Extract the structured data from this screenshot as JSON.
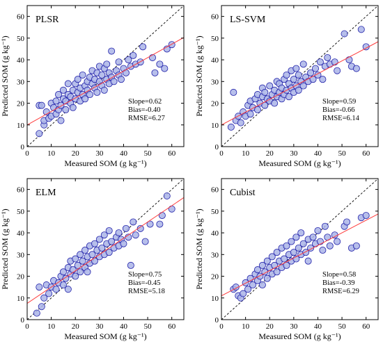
{
  "colors": {
    "point_fill": "#aab4e8",
    "point_stroke": "#2222aa",
    "fit_line": "#ff3b3b",
    "one_to_one_line": "#000000",
    "axis": "#000000"
  },
  "chart_data": [
    {
      "type": "scatter",
      "title": "PLSR",
      "xlabel": "Measured SOM (g kg⁻¹)",
      "ylabel": "Predicted SOM (g kg⁻¹)",
      "xlim": [
        0,
        65
      ],
      "ylim": [
        0,
        65
      ],
      "xticks": [
        "0",
        "10",
        "20",
        "30",
        "40",
        "50",
        "60"
      ],
      "yticks": [
        "0",
        "10",
        "20",
        "30",
        "40",
        "50",
        "60"
      ],
      "fit": {
        "slope": 0.62,
        "intercept": 10.0
      },
      "one_to_one": true,
      "stats": [
        "Slope=0.62",
        "Bias=-0.40",
        "RMSE=6.27"
      ],
      "points": [
        [
          5,
          6
        ],
        [
          5,
          19
        ],
        [
          6,
          19
        ],
        [
          7,
          10
        ],
        [
          7,
          12
        ],
        [
          8,
          16
        ],
        [
          9,
          13
        ],
        [
          10,
          14
        ],
        [
          10,
          20
        ],
        [
          11,
          18
        ],
        [
          12,
          15
        ],
        [
          12,
          21
        ],
        [
          13,
          17
        ],
        [
          13,
          24
        ],
        [
          14,
          19
        ],
        [
          14,
          12
        ],
        [
          15,
          22
        ],
        [
          15,
          26
        ],
        [
          16,
          17
        ],
        [
          16,
          21
        ],
        [
          17,
          24
        ],
        [
          17,
          29
        ],
        [
          18,
          20
        ],
        [
          18,
          23
        ],
        [
          19,
          26
        ],
        [
          19,
          18
        ],
        [
          20,
          22
        ],
        [
          20,
          29
        ],
        [
          21,
          25
        ],
        [
          21,
          31
        ],
        [
          22,
          21
        ],
        [
          22,
          27
        ],
        [
          23,
          24
        ],
        [
          23,
          33
        ],
        [
          24,
          28
        ],
        [
          24,
          22
        ],
        [
          25,
          30
        ],
        [
          25,
          26
        ],
        [
          26,
          24
        ],
        [
          26,
          32
        ],
        [
          27,
          29
        ],
        [
          27,
          35
        ],
        [
          28,
          27
        ],
        [
          28,
          31
        ],
        [
          29,
          25
        ],
        [
          29,
          34
        ],
        [
          30,
          30
        ],
        [
          30,
          37
        ],
        [
          31,
          28
        ],
        [
          31,
          33
        ],
        [
          32,
          26
        ],
        [
          32,
          36
        ],
        [
          33,
          31
        ],
        [
          33,
          38
        ],
        [
          34,
          29
        ],
        [
          34,
          34
        ],
        [
          35,
          32
        ],
        [
          35,
          44
        ],
        [
          36,
          30
        ],
        [
          37,
          35
        ],
        [
          38,
          33
        ],
        [
          38,
          39
        ],
        [
          39,
          31
        ],
        [
          40,
          36
        ],
        [
          41,
          34
        ],
        [
          42,
          40
        ],
        [
          43,
          37
        ],
        [
          44,
          42
        ],
        [
          45,
          38
        ],
        [
          47,
          39
        ],
        [
          48,
          46
        ],
        [
          52,
          41
        ],
        [
          53,
          34
        ],
        [
          55,
          38
        ],
        [
          57,
          36
        ],
        [
          58,
          45
        ],
        [
          60,
          47
        ]
      ]
    },
    {
      "type": "scatter",
      "title": "LS-SVM",
      "xlabel": "Measured SOM (g kg⁻¹)",
      "ylabel": "Predicted SOM (g kg⁻¹)",
      "xlim": [
        0,
        65
      ],
      "ylim": [
        0,
        65
      ],
      "xticks": [
        "0",
        "10",
        "20",
        "30",
        "40",
        "50",
        "60"
      ],
      "yticks": [
        "0",
        "10",
        "20",
        "30",
        "40",
        "50",
        "60"
      ],
      "fit": {
        "slope": 0.59,
        "intercept": 10.0
      },
      "one_to_one": true,
      "stats": [
        "Slope=0.59",
        "Bias=-0.66",
        "RMSE=6.14"
      ],
      "points": [
        [
          4,
          9
        ],
        [
          5,
          25
        ],
        [
          6,
          12
        ],
        [
          7,
          14
        ],
        [
          8,
          11
        ],
        [
          9,
          16
        ],
        [
          10,
          14
        ],
        [
          11,
          19
        ],
        [
          12,
          21
        ],
        [
          12,
          15
        ],
        [
          13,
          18
        ],
        [
          14,
          22
        ],
        [
          15,
          17
        ],
        [
          15,
          24
        ],
        [
          16,
          20
        ],
        [
          17,
          23
        ],
        [
          17,
          27
        ],
        [
          18,
          19
        ],
        [
          18,
          25
        ],
        [
          19,
          22
        ],
        [
          20,
          21
        ],
        [
          20,
          28
        ],
        [
          21,
          24
        ],
        [
          22,
          20
        ],
        [
          22,
          26
        ],
        [
          23,
          23
        ],
        [
          23,
          30
        ],
        [
          24,
          25
        ],
        [
          24,
          29
        ],
        [
          25,
          22
        ],
        [
          25,
          27
        ],
        [
          26,
          24
        ],
        [
          26,
          31
        ],
        [
          27,
          26
        ],
        [
          27,
          33
        ],
        [
          28,
          23
        ],
        [
          28,
          29
        ],
        [
          29,
          27
        ],
        [
          29,
          35
        ],
        [
          30,
          25
        ],
        [
          30,
          31
        ],
        [
          31,
          28
        ],
        [
          31,
          36
        ],
        [
          32,
          26
        ],
        [
          32,
          33
        ],
        [
          33,
          30
        ],
        [
          34,
          28
        ],
        [
          34,
          38
        ],
        [
          35,
          32
        ],
        [
          36,
          30
        ],
        [
          37,
          34
        ],
        [
          38,
          31
        ],
        [
          39,
          36
        ],
        [
          40,
          33
        ],
        [
          41,
          39
        ],
        [
          42,
          31
        ],
        [
          43,
          37
        ],
        [
          44,
          41
        ],
        [
          45,
          38
        ],
        [
          47,
          39
        ],
        [
          48,
          35
        ],
        [
          51,
          52
        ],
        [
          53,
          40
        ],
        [
          54,
          37
        ],
        [
          56,
          36
        ],
        [
          58,
          54
        ],
        [
          60,
          46
        ]
      ]
    },
    {
      "type": "scatter",
      "title": "ELM",
      "xlabel": "Measured SOM (g kg⁻¹)",
      "ylabel": "Predicted SOM (g kg⁻¹)",
      "xlim": [
        0,
        65
      ],
      "ylim": [
        0,
        65
      ],
      "xticks": [
        "0",
        "10",
        "20",
        "30",
        "40",
        "50",
        "60"
      ],
      "yticks": [
        "0",
        "10",
        "20",
        "30",
        "40",
        "50",
        "60"
      ],
      "fit": {
        "slope": 0.75,
        "intercept": 7.5
      },
      "one_to_one": true,
      "stats": [
        "Slope=0.75",
        "Bias=-0.45",
        "RMSE=5.18"
      ],
      "points": [
        [
          4,
          3
        ],
        [
          5,
          15
        ],
        [
          6,
          6
        ],
        [
          7,
          10
        ],
        [
          8,
          16
        ],
        [
          9,
          12
        ],
        [
          10,
          15
        ],
        [
          11,
          18
        ],
        [
          12,
          14
        ],
        [
          13,
          17
        ],
        [
          14,
          20
        ],
        [
          15,
          16
        ],
        [
          15,
          22
        ],
        [
          16,
          19
        ],
        [
          17,
          24
        ],
        [
          17,
          14
        ],
        [
          18,
          21
        ],
        [
          18,
          27
        ],
        [
          19,
          23
        ],
        [
          20,
          20
        ],
        [
          20,
          28
        ],
        [
          21,
          25
        ],
        [
          22,
          22
        ],
        [
          22,
          30
        ],
        [
          23,
          27
        ],
        [
          24,
          24
        ],
        [
          24,
          32
        ],
        [
          25,
          29
        ],
        [
          25,
          22
        ],
        [
          26,
          26
        ],
        [
          26,
          34
        ],
        [
          27,
          30
        ],
        [
          28,
          27
        ],
        [
          28,
          35
        ],
        [
          29,
          32
        ],
        [
          30,
          29
        ],
        [
          30,
          37
        ],
        [
          31,
          33
        ],
        [
          32,
          30
        ],
        [
          32,
          39
        ],
        [
          33,
          35
        ],
        [
          34,
          31
        ],
        [
          34,
          41
        ],
        [
          35,
          36
        ],
        [
          36,
          33
        ],
        [
          37,
          38
        ],
        [
          38,
          34
        ],
        [
          38,
          40
        ],
        [
          39,
          37
        ],
        [
          40,
          35
        ],
        [
          41,
          42
        ],
        [
          42,
          38
        ],
        [
          43,
          25
        ],
        [
          44,
          45
        ],
        [
          45,
          39
        ],
        [
          47,
          42
        ],
        [
          49,
          36
        ],
        [
          51,
          44
        ],
        [
          55,
          44
        ],
        [
          56,
          48
        ],
        [
          58,
          57
        ],
        [
          60,
          51
        ]
      ]
    },
    {
      "type": "scatter",
      "title": "Cubist",
      "xlabel": "Measured SOM (g kg⁻¹)",
      "ylabel": "Predicted SOM (g kg⁻¹)",
      "xlim": [
        0,
        65
      ],
      "ylim": [
        0,
        65
      ],
      "xticks": [
        "0",
        "10",
        "20",
        "30",
        "40",
        "50",
        "60"
      ],
      "yticks": [
        "0",
        "10",
        "20",
        "30",
        "40",
        "50",
        "60"
      ],
      "fit": {
        "slope": 0.58,
        "intercept": 11.0
      },
      "one_to_one": true,
      "stats": [
        "Slope=0.58",
        "Bias=-0.39",
        "RMSE=6.29"
      ],
      "points": [
        [
          5,
          14
        ],
        [
          6,
          15
        ],
        [
          7,
          11
        ],
        [
          8,
          10
        ],
        [
          9,
          12
        ],
        [
          10,
          17
        ],
        [
          11,
          14
        ],
        [
          12,
          19
        ],
        [
          13,
          16
        ],
        [
          14,
          21
        ],
        [
          15,
          18
        ],
        [
          15,
          23
        ],
        [
          16,
          20
        ],
        [
          17,
          16
        ],
        [
          17,
          25
        ],
        [
          18,
          22
        ],
        [
          19,
          19
        ],
        [
          19,
          27
        ],
        [
          20,
          24
        ],
        [
          21,
          21
        ],
        [
          21,
          29
        ],
        [
          22,
          25
        ],
        [
          23,
          22
        ],
        [
          23,
          31
        ],
        [
          24,
          27
        ],
        [
          25,
          24
        ],
        [
          25,
          33
        ],
        [
          26,
          28
        ],
        [
          27,
          25
        ],
        [
          27,
          34
        ],
        [
          28,
          30
        ],
        [
          29,
          27
        ],
        [
          29,
          36
        ],
        [
          30,
          31
        ],
        [
          31,
          28
        ],
        [
          31,
          38
        ],
        [
          32,
          33
        ],
        [
          33,
          30
        ],
        [
          33,
          40
        ],
        [
          34,
          35
        ],
        [
          35,
          31
        ],
        [
          36,
          37
        ],
        [
          36,
          27
        ],
        [
          37,
          33
        ],
        [
          38,
          38
        ],
        [
          39,
          35
        ],
        [
          40,
          41
        ],
        [
          41,
          36
        ],
        [
          42,
          32
        ],
        [
          43,
          43
        ],
        [
          44,
          38
        ],
        [
          45,
          34
        ],
        [
          47,
          39
        ],
        [
          48,
          36
        ],
        [
          51,
          43
        ],
        [
          52,
          45
        ],
        [
          54,
          33
        ],
        [
          56,
          34
        ],
        [
          58,
          47
        ],
        [
          60,
          48
        ]
      ]
    }
  ]
}
